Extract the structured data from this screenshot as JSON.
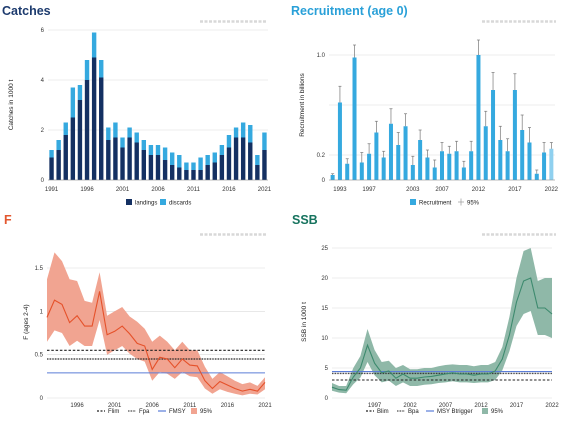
{
  "colors": {
    "catches_title": "#1d3b6e",
    "recruitment_title": "#29a0d8",
    "f_title": "#e3572f",
    "ssb_title": "#16735e",
    "landings": "#143062",
    "discards": "#35a9df",
    "recruitment_bar": "#35a9df",
    "f_line": "#e5512a",
    "f_band": "#f1a491",
    "ssb_line": "#3d8a6e",
    "ssb_band": "#8fb8a8",
    "fmsy_line": "#5b7dd8",
    "msy_btrigger_line": "#5b7dd8"
  },
  "chart_data": [
    {
      "id": "catches",
      "type": "bar",
      "stacked": true,
      "title": "Catches",
      "ylabel": "Catches in 1000 t",
      "ylim": [
        0,
        6
      ],
      "yticks": [
        "0",
        "2",
        "4",
        "6"
      ],
      "x": [
        1991,
        1992,
        1993,
        1994,
        1995,
        1996,
        1997,
        1998,
        1999,
        2000,
        2001,
        2002,
        2003,
        2004,
        2005,
        2006,
        2007,
        2008,
        2009,
        2010,
        2011,
        2012,
        2013,
        2014,
        2015,
        2016,
        2017,
        2018,
        2019,
        2020,
        2021
      ],
      "xticks": [
        "1991",
        "1996",
        "2001",
        "2006",
        "2011",
        "2016",
        "2021"
      ],
      "series": [
        {
          "name": "landings",
          "values": [
            0.9,
            1.2,
            1.8,
            2.5,
            3.2,
            4.0,
            4.9,
            4.1,
            1.6,
            1.7,
            1.3,
            1.7,
            1.5,
            1.2,
            1.0,
            1.0,
            0.8,
            0.6,
            0.5,
            0.4,
            0.4,
            0.4,
            0.6,
            0.7,
            1.0,
            1.3,
            1.7,
            1.7,
            1.5,
            0.6,
            1.2
          ]
        },
        {
          "name": "discards",
          "values": [
            0.3,
            0.4,
            0.5,
            1.2,
            0.6,
            0.8,
            1.0,
            0.7,
            0.5,
            0.6,
            0.4,
            0.4,
            0.4,
            0.4,
            0.4,
            0.4,
            0.5,
            0.5,
            0.5,
            0.3,
            0.3,
            0.5,
            0.4,
            0.4,
            0.4,
            0.5,
            0.4,
            0.6,
            0.7,
            0.4,
            0.7
          ]
        }
      ],
      "legend": [
        "landings",
        "discards"
      ],
      "legend_position": "bottom"
    },
    {
      "id": "recruitment",
      "type": "bar",
      "title": "Recruitment (age 0)",
      "ylabel": "Recruitment in billions",
      "ylim": [
        0,
        1.2
      ],
      "yticks": [
        "0",
        "0.2",
        "",
        "1.0"
      ],
      "x": [
        1992,
        1993,
        1994,
        1995,
        1996,
        1997,
        1998,
        1999,
        2000,
        2001,
        2002,
        2003,
        2004,
        2005,
        2006,
        2007,
        2008,
        2009,
        2010,
        2011,
        2012,
        2013,
        2014,
        2015,
        2016,
        2017,
        2018,
        2019,
        2020,
        2021,
        2022
      ],
      "xticks": [
        "1993",
        "1997",
        "2003",
        "2007",
        "2012",
        "2017",
        "2022"
      ],
      "series": [
        {
          "name": "Recruitment",
          "values": [
            0.04,
            0.62,
            0.13,
            0.98,
            0.14,
            0.21,
            0.38,
            0.18,
            0.45,
            0.28,
            0.43,
            0.12,
            0.32,
            0.18,
            0.1,
            0.23,
            0.21,
            0.23,
            0.1,
            0.23,
            1.0,
            0.43,
            0.72,
            0.32,
            0.23,
            0.72,
            0.4,
            0.3,
            0.05,
            0.22,
            0.25
          ]
        },
        {
          "name": "95%",
          "upper": [
            0.05,
            0.75,
            0.17,
            1.08,
            0.22,
            0.29,
            0.47,
            0.23,
            0.57,
            0.38,
            0.53,
            0.19,
            0.4,
            0.24,
            0.16,
            0.3,
            0.27,
            0.31,
            0.15,
            0.31,
            1.12,
            0.55,
            0.86,
            0.43,
            0.33,
            0.85,
            0.52,
            0.42,
            0.08,
            0.3,
            0.3
          ]
        }
      ],
      "legend": [
        "Recruitment",
        "95%"
      ],
      "legend_position": "bottom"
    },
    {
      "id": "f",
      "type": "line",
      "title": "F",
      "ylabel": "F (ages 2-4)",
      "ylim": [
        0,
        1.8
      ],
      "yticks": [
        "0",
        "0.5",
        "1",
        "1.5"
      ],
      "x": [
        1992,
        1993,
        1994,
        1995,
        1996,
        1997,
        1998,
        1999,
        2000,
        2001,
        2002,
        2003,
        2004,
        2005,
        2006,
        2007,
        2008,
        2009,
        2010,
        2011,
        2012,
        2013,
        2014,
        2015,
        2016,
        2017,
        2018,
        2019,
        2020,
        2021
      ],
      "xticks": [
        "1996",
        "2001",
        "2006",
        "2011",
        "2016",
        "2021"
      ],
      "series": [
        {
          "name": "F",
          "values": [
            0.93,
            1.13,
            1.08,
            0.87,
            0.95,
            0.83,
            0.83,
            1.23,
            0.73,
            0.77,
            0.83,
            0.74,
            0.63,
            0.6,
            0.33,
            0.47,
            0.45,
            0.35,
            0.45,
            0.38,
            0.37,
            0.2,
            0.11,
            0.19,
            0.15,
            0.11,
            0.08,
            0.1,
            0.08,
            0.18
          ]
        },
        {
          "name": "95%",
          "upper": [
            1.37,
            1.68,
            1.58,
            1.37,
            1.35,
            1.12,
            1.1,
            1.45,
            0.95,
            1.0,
            1.05,
            0.94,
            0.88,
            0.8,
            0.65,
            0.72,
            0.65,
            0.55,
            0.65,
            0.55,
            0.55,
            0.36,
            0.22,
            0.3,
            0.25,
            0.2,
            0.16,
            0.18,
            0.14,
            0.24
          ],
          "lower": [
            0.65,
            0.78,
            0.75,
            0.6,
            0.66,
            0.6,
            0.6,
            0.9,
            0.5,
            0.55,
            0.6,
            0.51,
            0.45,
            0.42,
            0.2,
            0.3,
            0.28,
            0.22,
            0.3,
            0.25,
            0.24,
            0.11,
            0.05,
            0.1,
            0.07,
            0.05,
            0.03,
            0.05,
            0.04,
            0.1
          ]
        }
      ],
      "reference_lines": [
        {
          "name": "Flim",
          "value": 0.55,
          "style": "dashed"
        },
        {
          "name": "Fpa",
          "value": 0.45,
          "style": "dotted"
        },
        {
          "name": "FMSY",
          "value": 0.29,
          "style": "solid"
        }
      ],
      "legend": [
        "Flim",
        "Fpa",
        "FMSY",
        "95%"
      ],
      "legend_position": "bottom"
    },
    {
      "id": "ssb",
      "type": "line",
      "title": "SSB",
      "ylabel": "SSB in 1000 t",
      "ylim": [
        0,
        26
      ],
      "yticks": [
        "0",
        "5",
        "10",
        "15",
        "20",
        "25"
      ],
      "x": [
        1991,
        1992,
        1993,
        1994,
        1995,
        1996,
        1997,
        1998,
        1999,
        2000,
        2001,
        2002,
        2003,
        2004,
        2005,
        2006,
        2007,
        2008,
        2009,
        2010,
        2011,
        2012,
        2013,
        2014,
        2015,
        2016,
        2017,
        2018,
        2019,
        2020,
        2021,
        2022
      ],
      "xticks": [
        "1997",
        "2002",
        "2007",
        "2012",
        "2017",
        "2022"
      ],
      "series": [
        {
          "name": "SSB",
          "values": [
            1.8,
            1.4,
            1.3,
            3.5,
            5.0,
            8.8,
            5.8,
            4.2,
            4.5,
            3.3,
            4.0,
            3.3,
            3.3,
            3.5,
            3.6,
            3.8,
            4.0,
            4.2,
            4.0,
            4.0,
            3.8,
            4.0,
            4.0,
            4.5,
            6.5,
            10.5,
            16.0,
            19.5,
            20.0,
            15.0,
            15.0,
            14.0
          ]
        },
        {
          "name": "95%",
          "upper": [
            2.5,
            2.0,
            2.0,
            5.0,
            7.0,
            11.5,
            8.0,
            6.0,
            6.2,
            5.0,
            5.5,
            4.8,
            4.8,
            5.0,
            5.0,
            5.3,
            5.5,
            5.6,
            5.5,
            5.5,
            5.3,
            5.5,
            5.5,
            6.0,
            8.5,
            13.5,
            20.0,
            24.5,
            25.0,
            19.5,
            20.0,
            20.0
          ],
          "lower": [
            1.2,
            0.9,
            0.8,
            2.3,
            3.4,
            6.0,
            3.8,
            2.6,
            2.9,
            2.0,
            2.6,
            2.0,
            2.0,
            2.2,
            2.3,
            2.5,
            2.6,
            2.8,
            2.6,
            2.6,
            2.5,
            2.6,
            2.6,
            3.0,
            4.6,
            7.8,
            12.0,
            14.0,
            14.5,
            10.5,
            10.5,
            10.0
          ]
        }
      ],
      "reference_lines": [
        {
          "name": "Blim",
          "value": 3.0,
          "style": "dashed"
        },
        {
          "name": "Bpa",
          "value": 4.1,
          "style": "dotted"
        },
        {
          "name": "MSY Btrigger",
          "value": 4.4,
          "style": "solid"
        }
      ],
      "legend": [
        "Blim",
        "Bpa",
        "MSY Btrigger",
        "95%"
      ],
      "legend_position": "bottom"
    }
  ]
}
